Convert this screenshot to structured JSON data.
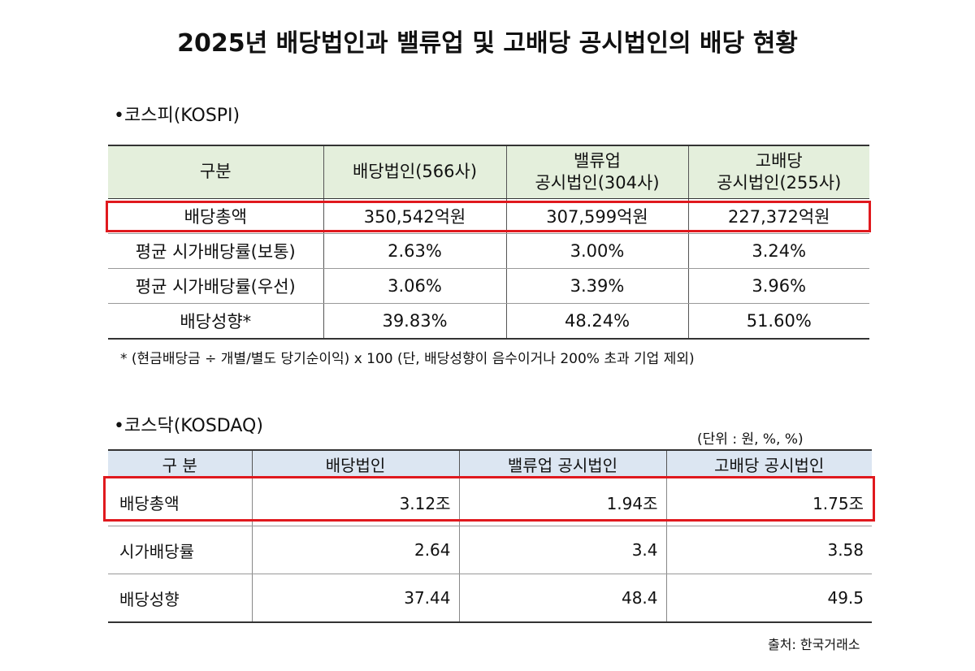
{
  "title": "2025년 배당법인과 밸류업 및 고배당 공시법인의 배당 현황",
  "kospi": {
    "heading": "•코스피(KOSPI)",
    "header": [
      [
        "구분"
      ],
      [
        "배당법인(566사)"
      ],
      [
        "밸류업",
        "공시법인(304사)"
      ],
      [
        "고배당",
        "공시법인(255사)"
      ]
    ],
    "rows": [
      [
        "배당총액",
        "350,542억원",
        "307,599억원",
        "227,372억원"
      ],
      [
        "평균 시가배당률(보통)",
        "2.63%",
        "3.00%",
        "3.24%"
      ],
      [
        "평균 시가배당률(우선)",
        "3.06%",
        "3.39%",
        "3.96%"
      ],
      [
        "배당성향*",
        "39.83%",
        "48.24%",
        "51.60%"
      ]
    ],
    "note": "* (현금배당금 ÷ 개별/별도 당기순이익) x 100 (단, 배당성향이 음수이거나 200% 초과 기업 제외)"
  },
  "kosdaq": {
    "heading": "•코스닥(KOSDAQ)",
    "unit": "(단위 : 원, %, %)",
    "header": [
      "구 분",
      "배당법인",
      "밸류업 공시법인",
      "고배당 공시법인"
    ],
    "rows": [
      [
        "배당총액",
        "3.12조",
        "1.94조",
        "1.75조"
      ],
      [
        "시가배당률",
        "2.64",
        "3.4",
        "3.58"
      ],
      [
        "배당성향",
        "37.44",
        "48.4",
        "49.5"
      ]
    ]
  },
  "source": "출처: 한국거래소"
}
